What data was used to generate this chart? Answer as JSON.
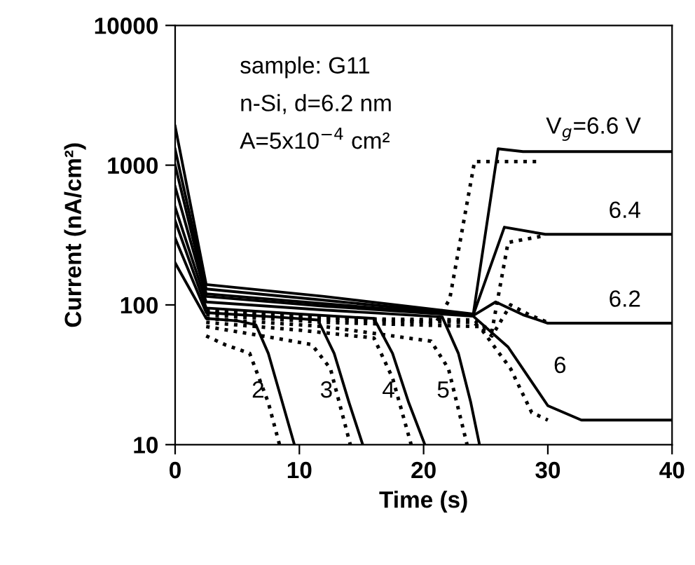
{
  "chart_data": {
    "type": "line",
    "xlabel": "Time (s)",
    "ylabel": "Current (nA/cm²)",
    "log": "y",
    "xlim": [
      0,
      40
    ],
    "ylim": [
      10,
      10000
    ],
    "xticks": [
      0,
      10,
      20,
      30,
      40
    ],
    "yticks": [
      10,
      100,
      1000,
      10000
    ],
    "grid": false,
    "marker": "none",
    "series": [
      {
        "name": "2",
        "color": "#000000",
        "line_style": "solid",
        "x": [
          0,
          2.5,
          5,
          6.5,
          7.5,
          8.5,
          9.6
        ],
        "values": [
          200,
          80,
          77,
          72,
          45,
          22,
          10
        ]
      },
      {
        "name": "3",
        "color": "#000000",
        "line_style": "solid",
        "x": [
          0,
          2.5,
          8,
          11.5,
          12.8,
          14,
          15.1
        ],
        "values": [
          300,
          88,
          82,
          78,
          45,
          20,
          10
        ]
      },
      {
        "name": "4",
        "color": "#000000",
        "line_style": "solid",
        "x": [
          0,
          2.5,
          10,
          16,
          17.5,
          18.8,
          20.1
        ],
        "values": [
          400,
          95,
          86,
          80,
          45,
          20,
          10
        ]
      },
      {
        "name": "5",
        "color": "#000000",
        "line_style": "solid",
        "x": [
          0,
          2.5,
          12,
          21.5,
          22.8,
          23.8,
          24.5
        ],
        "values": [
          500,
          105,
          92,
          82,
          45,
          20,
          10
        ]
      },
      {
        "name": "6",
        "color": "#000000",
        "line_style": "solid",
        "x": [
          0,
          2.5,
          12,
          24,
          26.8,
          30,
          32.7,
          40
        ],
        "values": [
          700,
          115,
          98,
          83,
          50,
          19,
          15,
          15
        ]
      },
      {
        "name": "6.2",
        "color": "#000000",
        "line_style": "solid",
        "x": [
          0,
          2.5,
          12,
          24,
          25.8,
          28,
          30,
          40
        ],
        "values": [
          1000,
          120,
          102,
          84,
          105,
          85,
          74,
          74
        ]
      },
      {
        "name": "6.4",
        "color": "#000000",
        "line_style": "solid",
        "x": [
          0,
          2.5,
          12,
          24,
          26.5,
          29.8,
          40
        ],
        "values": [
          1300,
          130,
          108,
          85,
          360,
          320,
          320
        ]
      },
      {
        "name": "V$_{g}$=6.6 V",
        "color": "#000000",
        "line_style": "solid",
        "x": [
          0,
          2.5,
          12,
          24,
          26,
          28,
          40
        ],
        "values": [
          1900,
          140,
          115,
          86,
          1310,
          1250,
          1250
        ]
      },
      {
        "color": "#000000",
        "line_style": "dotted",
        "x": [
          2.5,
          4,
          6,
          7.5,
          8.4
        ],
        "values": [
          60,
          52,
          45,
          20,
          10
        ]
      },
      {
        "color": "#000000",
        "line_style": "dotted",
        "x": [
          2.5,
          8,
          11,
          12.5,
          14.1
        ],
        "values": [
          70,
          58,
          52,
          35,
          10
        ]
      },
      {
        "color": "#000000",
        "line_style": "dotted",
        "x": [
          2.5,
          10,
          16,
          17.5,
          19
        ],
        "values": [
          75,
          66,
          58,
          30,
          10
        ]
      },
      {
        "color": "#000000",
        "line_style": "dotted",
        "x": [
          2.5,
          12,
          20.6,
          22,
          23.5
        ],
        "values": [
          80,
          70,
          55,
          35,
          10
        ]
      },
      {
        "color": "#000000",
        "line_style": "dotted",
        "x": [
          2.5,
          12,
          24.5,
          27,
          28.7,
          30
        ],
        "values": [
          85,
          75,
          70,
          35,
          17,
          15
        ]
      },
      {
        "color": "#000000",
        "line_style": "dotted",
        "x": [
          2.5,
          12,
          24,
          25.5,
          27,
          28.5,
          30
        ],
        "values": [
          88,
          78,
          75,
          60,
          100,
          85,
          75
        ]
      },
      {
        "color": "#000000",
        "line_style": "dotted",
        "x": [
          2.5,
          12,
          24,
          25.5,
          26.8,
          29.5
        ],
        "values": [
          90,
          80,
          78,
          65,
          280,
          310
        ]
      },
      {
        "color": "#000000",
        "line_style": "dotted",
        "x": [
          2.5,
          12,
          21,
          22.1,
          24.1,
          29.4
        ],
        "values": [
          92,
          82,
          75,
          110,
          1060,
          1060
        ]
      }
    ],
    "annotations": [
      "sample: G11",
      "n-Si, d=6.2 nm",
      "A=5x10$^{−4}$ cm²"
    ]
  }
}
